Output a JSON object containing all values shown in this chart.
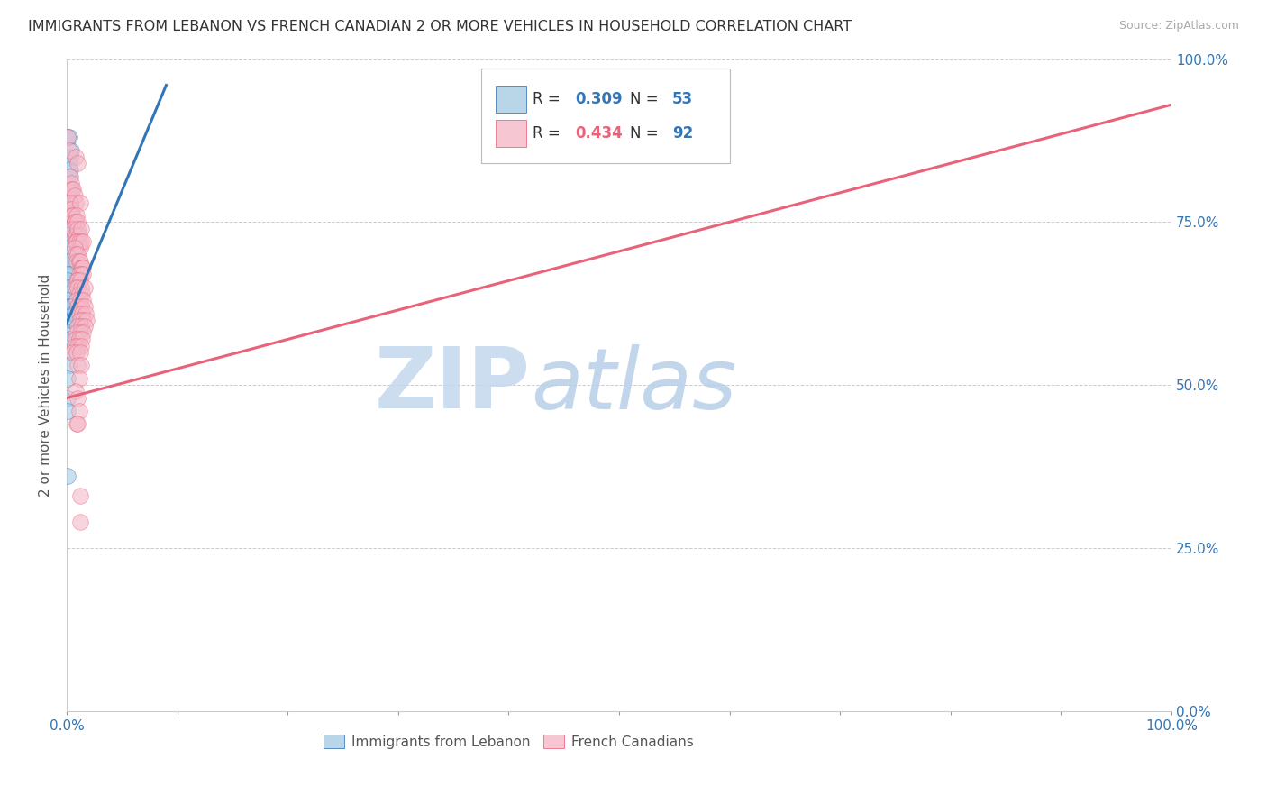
{
  "title": "IMMIGRANTS FROM LEBANON VS FRENCH CANADIAN 2 OR MORE VEHICLES IN HOUSEHOLD CORRELATION CHART",
  "source": "Source: ZipAtlas.com",
  "ylabel": "2 or more Vehicles in Household",
  "legend_blue_r": "0.309",
  "legend_blue_n": "53",
  "legend_pink_r": "0.434",
  "legend_pink_n": "92",
  "legend_blue_label": "Immigrants from Lebanon",
  "legend_pink_label": "French Canadians",
  "blue_color": "#a8cce4",
  "pink_color": "#f4b8c8",
  "blue_line_color": "#3375b5",
  "pink_line_color": "#e8637a",
  "watermark_zip": "ZIP",
  "watermark_atlas": "atlas",
  "blue_points": [
    [
      0.001,
      0.88
    ],
    [
      0.002,
      0.88
    ],
    [
      0.003,
      0.85
    ],
    [
      0.002,
      0.84
    ],
    [
      0.004,
      0.86
    ],
    [
      0.003,
      0.83
    ],
    [
      0.002,
      0.82
    ],
    [
      0.003,
      0.8
    ],
    [
      0.004,
      0.8
    ],
    [
      0.001,
      0.79
    ],
    [
      0.001,
      0.78
    ],
    [
      0.001,
      0.77
    ],
    [
      0.002,
      0.76
    ],
    [
      0.005,
      0.76
    ],
    [
      0.001,
      0.75
    ],
    [
      0.002,
      0.74
    ],
    [
      0.001,
      0.74
    ],
    [
      0.006,
      0.75
    ],
    [
      0.003,
      0.74
    ],
    [
      0.001,
      0.73
    ],
    [
      0.001,
      0.72
    ],
    [
      0.001,
      0.71
    ],
    [
      0.001,
      0.7
    ],
    [
      0.001,
      0.69
    ],
    [
      0.002,
      0.69
    ],
    [
      0.001,
      0.68
    ],
    [
      0.003,
      0.67
    ],
    [
      0.001,
      0.67
    ],
    [
      0.001,
      0.66
    ],
    [
      0.002,
      0.65
    ],
    [
      0.001,
      0.65
    ],
    [
      0.001,
      0.64
    ],
    [
      0.001,
      0.63
    ],
    [
      0.001,
      0.62
    ],
    [
      0.002,
      0.62
    ],
    [
      0.003,
      0.62
    ],
    [
      0.002,
      0.6
    ],
    [
      0.004,
      0.61
    ],
    [
      0.003,
      0.6
    ],
    [
      0.005,
      0.62
    ],
    [
      0.006,
      0.61
    ],
    [
      0.005,
      0.6
    ],
    [
      0.007,
      0.61
    ],
    [
      0.006,
      0.6
    ],
    [
      0.001,
      0.58
    ],
    [
      0.002,
      0.57
    ],
    [
      0.001,
      0.55
    ],
    [
      0.002,
      0.53
    ],
    [
      0.001,
      0.51
    ],
    [
      0.001,
      0.48
    ],
    [
      0.001,
      0.46
    ],
    [
      0.001,
      0.36
    ]
  ],
  "pink_points": [
    [
      0.001,
      0.88
    ],
    [
      0.002,
      0.86
    ],
    [
      0.008,
      0.85
    ],
    [
      0.01,
      0.84
    ],
    [
      0.003,
      0.82
    ],
    [
      0.004,
      0.81
    ],
    [
      0.005,
      0.8
    ],
    [
      0.006,
      0.8
    ],
    [
      0.007,
      0.79
    ],
    [
      0.008,
      0.78
    ],
    [
      0.003,
      0.78
    ],
    [
      0.004,
      0.77
    ],
    [
      0.012,
      0.78
    ],
    [
      0.005,
      0.76
    ],
    [
      0.006,
      0.76
    ],
    [
      0.009,
      0.76
    ],
    [
      0.007,
      0.75
    ],
    [
      0.008,
      0.75
    ],
    [
      0.01,
      0.75
    ],
    [
      0.006,
      0.74
    ],
    [
      0.007,
      0.73
    ],
    [
      0.009,
      0.73
    ],
    [
      0.01,
      0.74
    ],
    [
      0.011,
      0.73
    ],
    [
      0.013,
      0.74
    ],
    [
      0.008,
      0.72
    ],
    [
      0.009,
      0.72
    ],
    [
      0.011,
      0.72
    ],
    [
      0.012,
      0.71
    ],
    [
      0.013,
      0.72
    ],
    [
      0.015,
      0.72
    ],
    [
      0.007,
      0.71
    ],
    [
      0.008,
      0.7
    ],
    [
      0.01,
      0.7
    ],
    [
      0.009,
      0.69
    ],
    [
      0.011,
      0.69
    ],
    [
      0.012,
      0.69
    ],
    [
      0.013,
      0.68
    ],
    [
      0.014,
      0.68
    ],
    [
      0.015,
      0.68
    ],
    [
      0.011,
      0.67
    ],
    [
      0.013,
      0.67
    ],
    [
      0.015,
      0.67
    ],
    [
      0.009,
      0.66
    ],
    [
      0.01,
      0.66
    ],
    [
      0.012,
      0.66
    ],
    [
      0.008,
      0.65
    ],
    [
      0.01,
      0.65
    ],
    [
      0.013,
      0.65
    ],
    [
      0.011,
      0.64
    ],
    [
      0.014,
      0.64
    ],
    [
      0.016,
      0.65
    ],
    [
      0.009,
      0.63
    ],
    [
      0.012,
      0.63
    ],
    [
      0.015,
      0.63
    ],
    [
      0.01,
      0.62
    ],
    [
      0.013,
      0.62
    ],
    [
      0.016,
      0.62
    ],
    [
      0.011,
      0.61
    ],
    [
      0.014,
      0.61
    ],
    [
      0.017,
      0.61
    ],
    [
      0.012,
      0.6
    ],
    [
      0.015,
      0.6
    ],
    [
      0.018,
      0.6
    ],
    [
      0.01,
      0.59
    ],
    [
      0.013,
      0.59
    ],
    [
      0.016,
      0.59
    ],
    [
      0.009,
      0.58
    ],
    [
      0.012,
      0.58
    ],
    [
      0.015,
      0.58
    ],
    [
      0.008,
      0.57
    ],
    [
      0.011,
      0.57
    ],
    [
      0.014,
      0.57
    ],
    [
      0.007,
      0.56
    ],
    [
      0.01,
      0.56
    ],
    [
      0.013,
      0.56
    ],
    [
      0.006,
      0.55
    ],
    [
      0.009,
      0.55
    ],
    [
      0.012,
      0.55
    ],
    [
      0.01,
      0.53
    ],
    [
      0.013,
      0.53
    ],
    [
      0.011,
      0.51
    ],
    [
      0.008,
      0.49
    ],
    [
      0.01,
      0.48
    ],
    [
      0.011,
      0.46
    ],
    [
      0.009,
      0.44
    ],
    [
      0.01,
      0.44
    ],
    [
      0.012,
      0.33
    ],
    [
      0.012,
      0.29
    ]
  ],
  "blue_line_x": [
    0.0,
    0.09
  ],
  "blue_line_y": [
    0.595,
    0.96
  ],
  "pink_line_x": [
    0.0,
    1.0
  ],
  "pink_line_y": [
    0.48,
    0.93
  ],
  "xlim": [
    0.0,
    1.0
  ],
  "ylim": [
    0.0,
    1.0
  ]
}
